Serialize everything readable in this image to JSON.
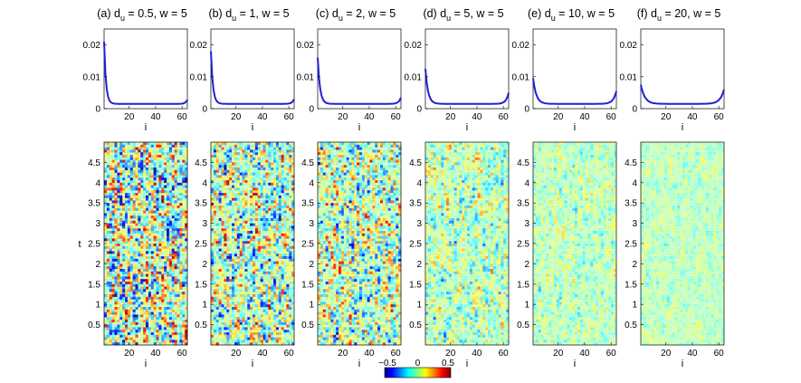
{
  "colors": {
    "line": "#1f1fd6",
    "colorbar": [
      "#00007f",
      "#0000ff",
      "#00ffff",
      "#ffff00",
      "#ff0000",
      "#7f0000"
    ]
  },
  "chart_data": [
    {
      "type": "line",
      "panels": [
        {
          "label": "(a)",
          "du": "0.5",
          "w": "5",
          "edge_left": 0.021,
          "edge_right": 0.0028,
          "decay": 1.4
        },
        {
          "label": "(b)",
          "du": "1",
          "w": "5",
          "edge_left": 0.018,
          "edge_right": 0.003,
          "decay": 1.5
        },
        {
          "label": "(c)",
          "du": "2",
          "w": "5",
          "edge_left": 0.016,
          "edge_right": 0.0035,
          "decay": 1.7
        },
        {
          "label": "(d)",
          "du": "5",
          "w": "5",
          "edge_left": 0.0125,
          "edge_right": 0.005,
          "decay": 2.0
        },
        {
          "label": "(e)",
          "du": "10",
          "w": "5",
          "edge_left": 0.0095,
          "edge_right": 0.0055,
          "decay": 2.4
        },
        {
          "label": "(f)",
          "du": "20",
          "w": "5",
          "edge_left": 0.0075,
          "edge_right": 0.006,
          "decay": 3.0
        }
      ],
      "baseline": 0.0015,
      "xlim": [
        1,
        64
      ],
      "ylim": [
        0,
        0.025
      ],
      "xticks": [
        "20",
        "40",
        "60"
      ],
      "yticks": [
        "0",
        "0.01",
        "0.02"
      ],
      "xlabel": "i"
    },
    {
      "type": "heatmap",
      "xlim": [
        1,
        64
      ],
      "ylim": [
        0,
        5
      ],
      "xticks": [
        "20",
        "40",
        "60"
      ],
      "yticks": [
        "0.5",
        "1",
        "1.5",
        "2",
        "2.5",
        "3",
        "3.5",
        "4",
        "4.5"
      ],
      "xlabel": "i",
      "ylabel": "t",
      "amplitudes": [
        0.38,
        0.32,
        0.3,
        0.2,
        0.14,
        0.1
      ],
      "colorbar": {
        "min": -0.5,
        "max": 0.5,
        "ticks": [
          "−0.5",
          "0",
          "0.5"
        ]
      }
    }
  ]
}
